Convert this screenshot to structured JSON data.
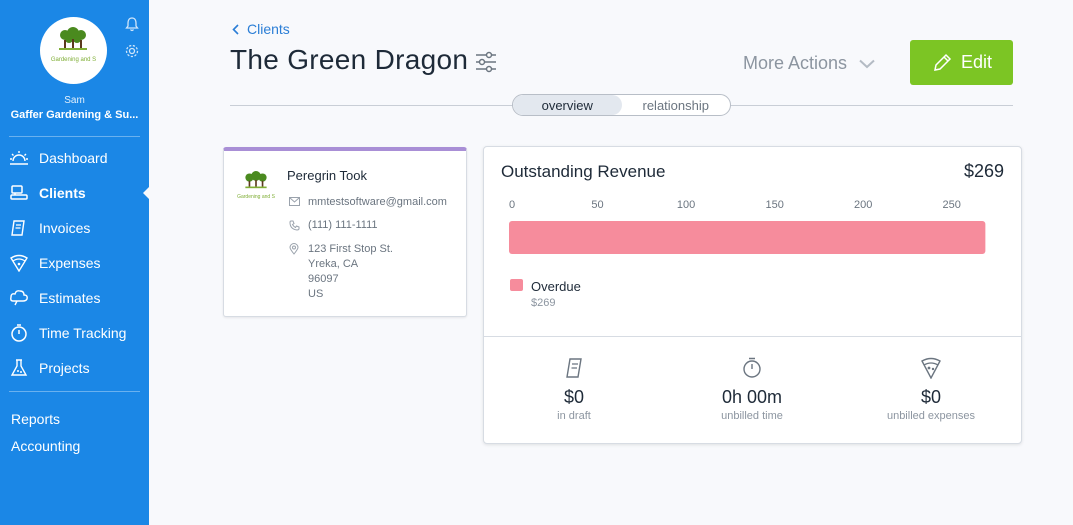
{
  "sidebar": {
    "logo_text": "Gardening and S",
    "user_name": "Sam",
    "company_name": "Gaffer Gardening & Su...",
    "nav": [
      {
        "label": "Dashboard",
        "icon": "dashboard-icon"
      },
      {
        "label": "Clients",
        "icon": "clients-icon",
        "active": true
      },
      {
        "label": "Invoices",
        "icon": "invoices-icon"
      },
      {
        "label": "Expenses",
        "icon": "expenses-icon"
      },
      {
        "label": "Estimates",
        "icon": "estimates-icon"
      },
      {
        "label": "Time Tracking",
        "icon": "time-tracking-icon"
      },
      {
        "label": "Projects",
        "icon": "projects-icon"
      }
    ],
    "links": [
      "Reports",
      "Accounting"
    ]
  },
  "header": {
    "breadcrumb": "Clients",
    "title": "The Green Dragon",
    "more_actions": "More Actions",
    "edit_label": "Edit",
    "tabs": [
      {
        "label": "overview",
        "active": true
      },
      {
        "label": "relationship",
        "active": false
      }
    ]
  },
  "contact": {
    "logo_text": "Gardening and S",
    "name": "Peregrin Took",
    "email": "mmtestsoftware@gmail.com",
    "phone": "(111) 111-1111",
    "address": [
      "123 First Stop St.",
      "Yreka, CA",
      "96097",
      "US"
    ]
  },
  "revenue": {
    "title": "Outstanding Revenue",
    "total": "$269",
    "legend_label": "Overdue",
    "legend_value": "$269",
    "stats": [
      {
        "value": "$0",
        "label": "in draft",
        "icon": "invoice-draft-icon"
      },
      {
        "value": "0h 00m",
        "label": "unbilled time",
        "icon": "stopwatch-icon"
      },
      {
        "value": "$0",
        "label": "unbilled expenses",
        "icon": "pizza-icon"
      }
    ]
  },
  "chart_data": {
    "type": "bar",
    "orientation": "horizontal",
    "categories": [
      "Overdue"
    ],
    "values": [
      269
    ],
    "xlim": [
      0,
      275
    ],
    "ticks": [
      0,
      50,
      100,
      150,
      200,
      250
    ],
    "color": "#f68c9c"
  },
  "colors": {
    "sidebar": "#1b87e6",
    "edit_button": "#7cc524",
    "card_accent": "#a98fd6",
    "overdue": "#f68c9c"
  }
}
